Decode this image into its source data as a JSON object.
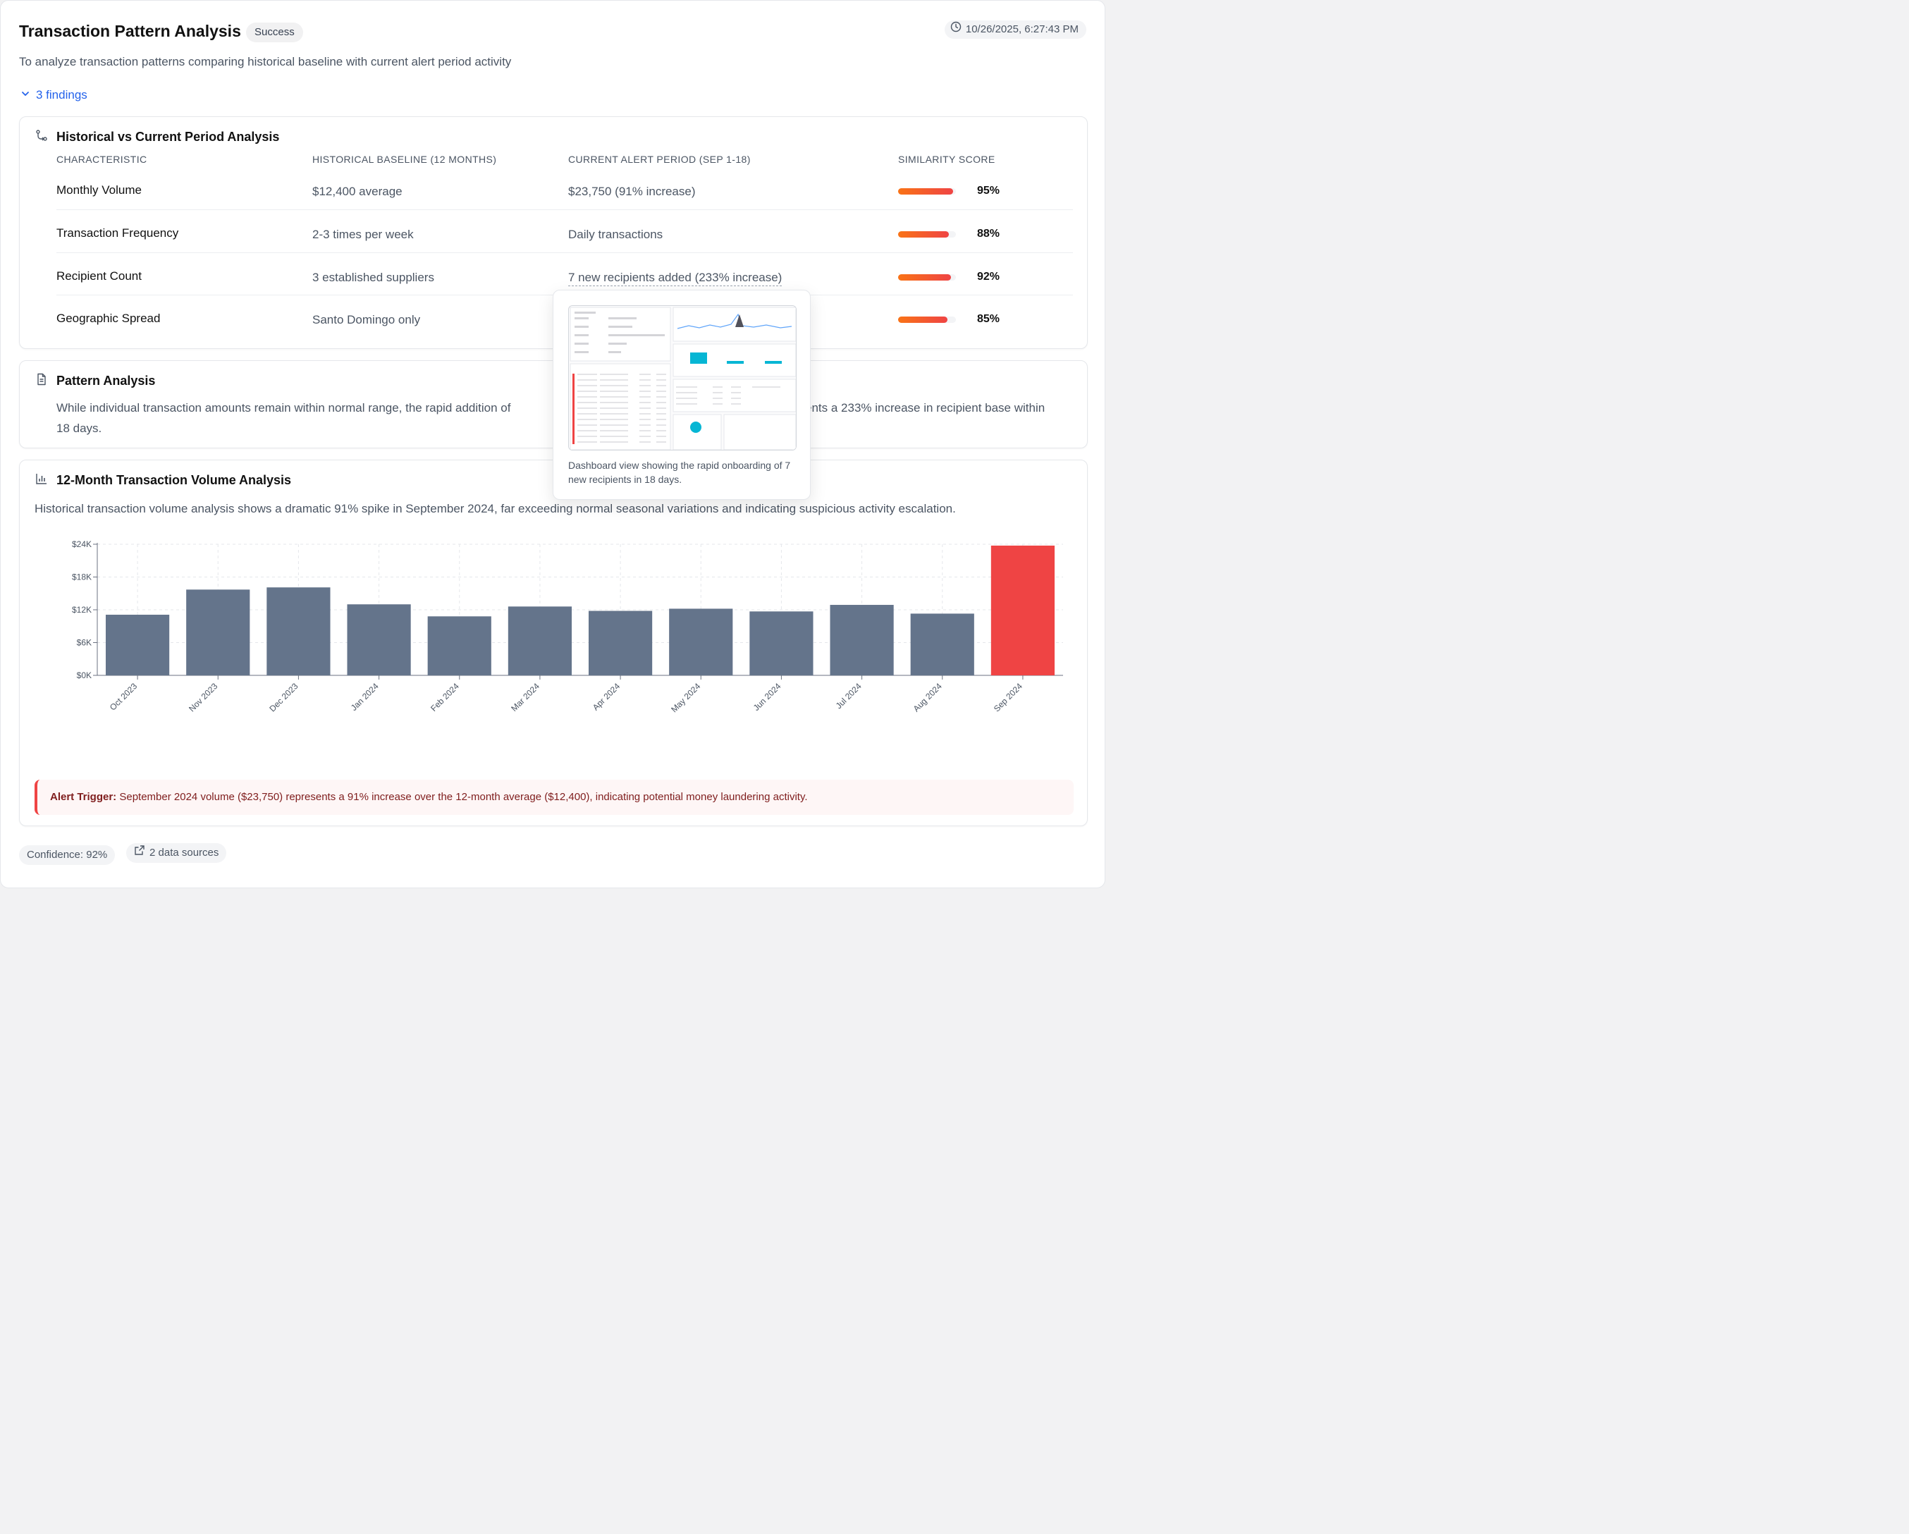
{
  "header": {
    "title": "Transaction Pattern Analysis",
    "status": "Success",
    "timestamp": "10/26/2025, 6:27:43 PM",
    "subtitle": "To analyze transaction patterns comparing historical baseline with current alert period activity",
    "findings_label": "3 findings"
  },
  "comparison": {
    "title": "Historical vs Current Period Analysis",
    "columns": [
      "CHARACTERISTIC",
      "HISTORICAL BASELINE (12 MONTHS)",
      "CURRENT ALERT PERIOD (SEP 1-18)",
      "SIMILARITY SCORE"
    ],
    "rows": [
      {
        "characteristic": "Monthly Volume",
        "historical": "$12,400 average",
        "current": "$23,750 (91% increase)",
        "score": "95%",
        "score_value": 0.95
      },
      {
        "characteristic": "Transaction Frequency",
        "historical": "2-3 times per week",
        "current": "Daily transactions",
        "score": "88%",
        "score_value": 0.88
      },
      {
        "characteristic": "Recipient Count",
        "historical": "3 established suppliers",
        "current": "7 new recipients added (233% increase)",
        "score": "92%",
        "score_value": 0.92
      },
      {
        "characteristic": "Geographic Spread",
        "historical": "Santo Domingo only",
        "current": "",
        "score": "85%",
        "score_value": 0.85
      }
    ]
  },
  "pattern": {
    "title": "Pattern Analysis",
    "text_start": "While individual transaction amounts remain within normal range, the rapid addition of",
    "text_end": "ents a 233% increase in recipient base within",
    "text_line2": "18 days."
  },
  "volume": {
    "title": "12-Month Transaction Volume Analysis",
    "description": "Historical transaction volume analysis shows a dramatic 91% spike in September 2024, far exceeding normal seasonal variations and indicating suspicious activity escalation.",
    "alert_label": "Alert Trigger:",
    "alert_text": "September 2024 volume ($23,750) represents a 91% increase over the 12-month average ($12,400), indicating potential money laundering activity."
  },
  "chart_data": {
    "type": "bar",
    "categories": [
      "Oct 2023",
      "Nov 2023",
      "Dec 2023",
      "Jan 2024",
      "Feb 2024",
      "Mar 2024",
      "Apr 2024",
      "May 2024",
      "Jun 2024",
      "Jul 2024",
      "Aug 2024",
      "Sep 2024"
    ],
    "values": [
      11100,
      15700,
      16100,
      13000,
      10800,
      12600,
      11800,
      12200,
      11700,
      12900,
      11300,
      23750
    ],
    "ylim": [
      0,
      24000
    ],
    "yticks": [
      0,
      6000,
      12000,
      18000,
      24000
    ],
    "ytick_labels": [
      "$0K",
      "$6K",
      "$12K",
      "$18K",
      "$24K"
    ],
    "colors": [
      "#64748b",
      "#64748b",
      "#64748b",
      "#64748b",
      "#64748b",
      "#64748b",
      "#64748b",
      "#64748b",
      "#64748b",
      "#64748b",
      "#64748b",
      "#ef4444"
    ],
    "grid": true
  },
  "tooltip": {
    "caption": "Dashboard view showing the rapid onboarding of 7 new recipients in 18 days."
  },
  "footer": {
    "confidence": "Confidence: 92%",
    "sources": "2 data sources"
  },
  "colors": {
    "accent": "#2563eb",
    "bar": "#64748b",
    "alert_bar": "#ef4444",
    "score_gradient_start": "#f97316",
    "score_gradient_end": "#ef4444"
  }
}
